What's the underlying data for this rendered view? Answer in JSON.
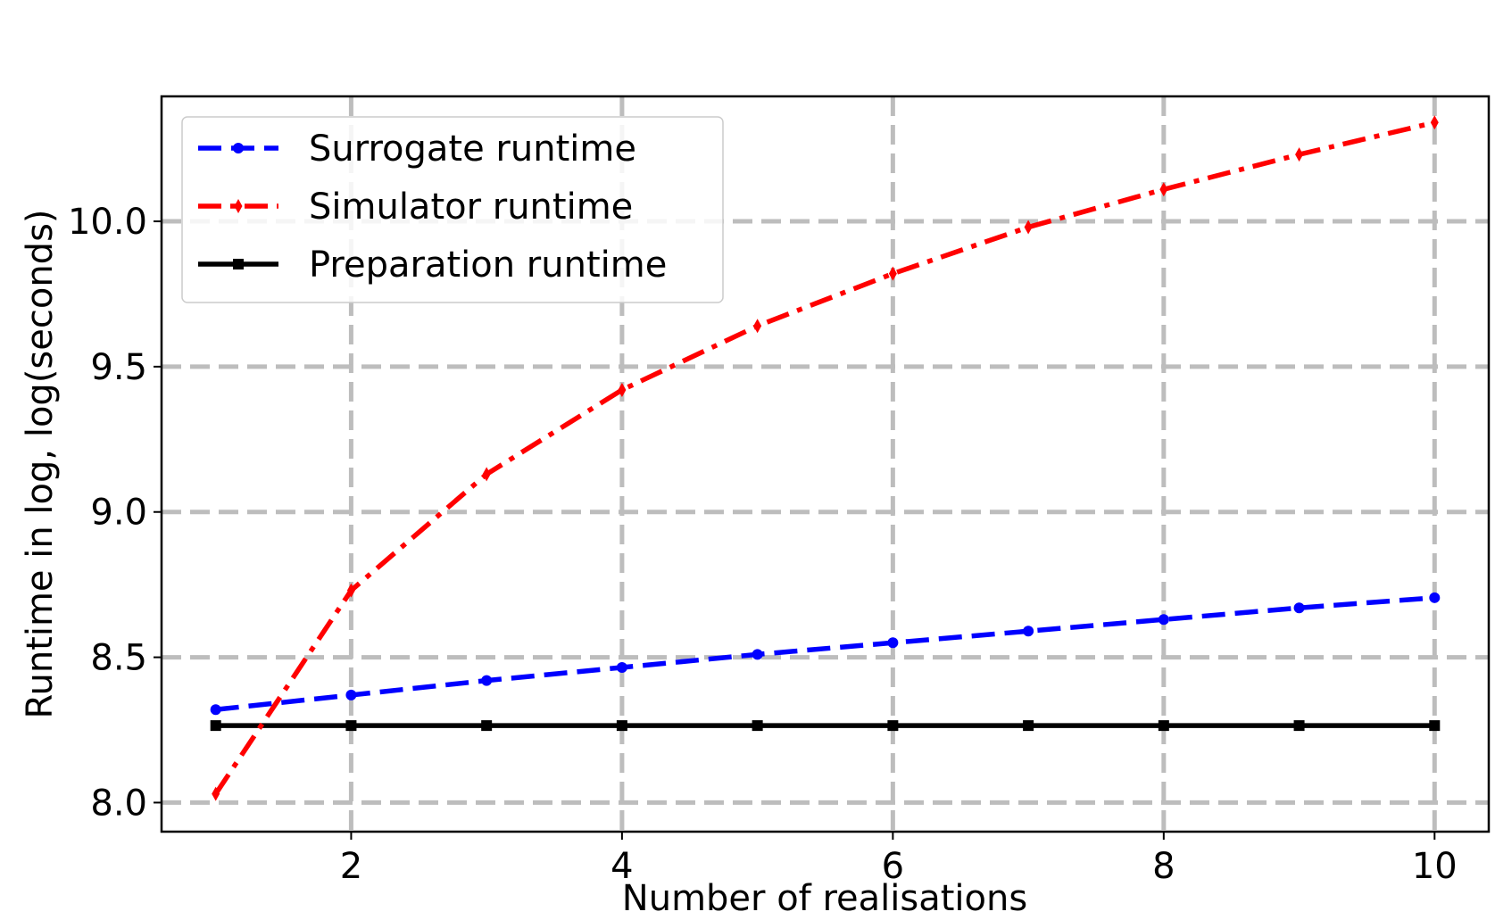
{
  "chart_data": {
    "type": "line",
    "title": "",
    "xlabel": "Number of realisations",
    "ylabel": "Runtime in log, log(seconds)",
    "xlim": [
      0.6,
      10.4
    ],
    "ylim": [
      7.9,
      10.43
    ],
    "x_ticks": [
      2,
      4,
      6,
      8,
      10
    ],
    "x_tick_labels": [
      "2",
      "4",
      "6",
      "8",
      "10"
    ],
    "y_ticks": [
      8.0,
      8.5,
      9.0,
      9.5,
      10.0
    ],
    "y_tick_labels": [
      "8.0",
      "8.5",
      "9.0",
      "9.5",
      "10.0"
    ],
    "grid": true,
    "legend_position": "top-left",
    "x": [
      1,
      2,
      3,
      4,
      5,
      6,
      7,
      8,
      9,
      10
    ],
    "series": [
      {
        "name": "Surrogate runtime",
        "color": "#0000ff",
        "line_style": "dashed",
        "marker": "circle",
        "values": [
          8.32,
          8.37,
          8.42,
          8.465,
          8.51,
          8.55,
          8.59,
          8.63,
          8.67,
          8.705
        ]
      },
      {
        "name": "Simulator runtime",
        "color": "#ff0000",
        "line_style": "dash-dot",
        "marker": "thin-diamond",
        "values": [
          8.03,
          8.73,
          9.13,
          9.42,
          9.64,
          9.82,
          9.98,
          10.11,
          10.23,
          10.34
        ]
      },
      {
        "name": "Preparation runtime",
        "color": "#000000",
        "line_style": "solid",
        "marker": "square",
        "values": [
          8.265,
          8.265,
          8.265,
          8.265,
          8.265,
          8.265,
          8.265,
          8.265,
          8.265,
          8.265
        ]
      }
    ]
  }
}
